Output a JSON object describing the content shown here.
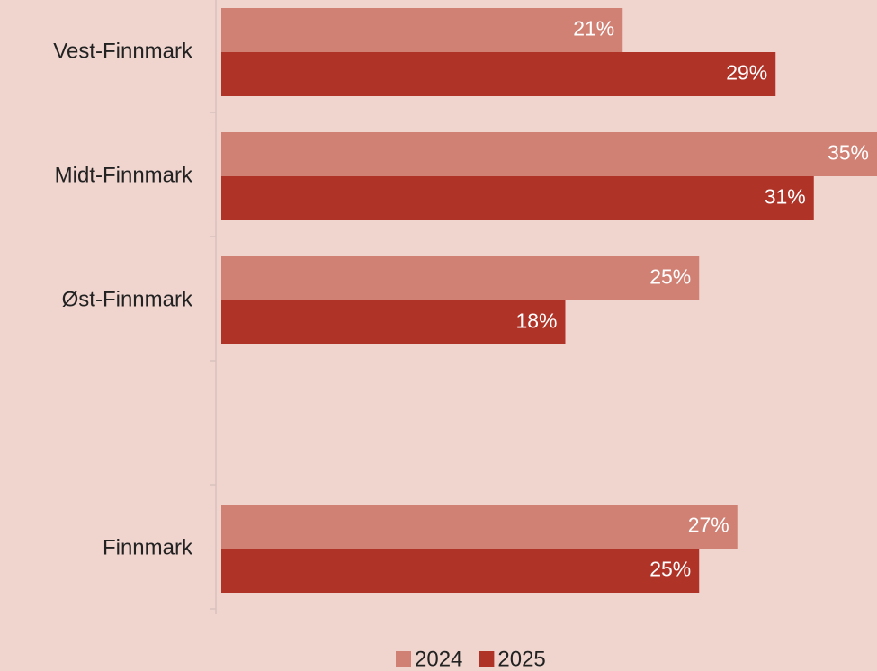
{
  "chart_data": {
    "type": "barh",
    "categories": [
      "Vest-Finnmark",
      "Midt-Finnmark",
      "Øst-Finnmark",
      null,
      "Finnmark"
    ],
    "series": [
      {
        "name": "2024",
        "color": "#d08174",
        "values": [
          21,
          35,
          25,
          null,
          27
        ],
        "value_labels": [
          "21%",
          "35%",
          "25%",
          null,
          "27%"
        ]
      },
      {
        "name": "2025",
        "color": "#b03328",
        "values": [
          29,
          31,
          18,
          null,
          25
        ],
        "value_labels": [
          "29%",
          "31%",
          "18%",
          null,
          "25%"
        ]
      }
    ],
    "legend": "bottom"
  }
}
